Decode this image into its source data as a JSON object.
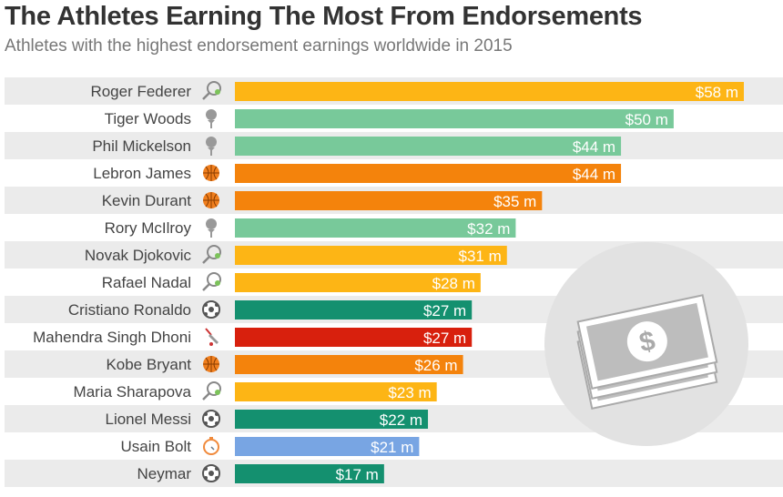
{
  "chart_data": {
    "type": "bar",
    "orientation": "horizontal",
    "title": "The Athletes Earning The Most From Endorsements",
    "subtitle": "Athletes with the highest endorsement earnings worldwide in 2015",
    "unit_prefix": "$",
    "unit_suffix": " m",
    "xlim": [
      0,
      58
    ],
    "categories": [
      "Roger Federer",
      "Tiger Woods",
      "Phil Mickelson",
      "Lebron James",
      "Kevin Durant",
      "Rory McIlroy",
      "Novak Djokovic",
      "Rafael Nadal",
      "Cristiano Ronaldo",
      "Mahendra Singh Dhoni",
      "Kobe Bryant",
      "Maria Sharapova",
      "Lionel Messi",
      "Usain Bolt",
      "Neymar"
    ],
    "values": [
      58,
      50,
      44,
      44,
      35,
      32,
      31,
      28,
      27,
      27,
      26,
      23,
      22,
      21,
      17
    ],
    "labels": [
      "$58 m",
      "$50 m",
      "$44 m",
      "$44 m",
      "$35 m",
      "$32 m",
      "$31 m",
      "$28 m",
      "$27 m",
      "$27 m",
      "$26 m",
      "$23 m",
      "$22 m",
      "$21 m",
      "$17 m"
    ],
    "sports": [
      "tennis",
      "golf",
      "golf",
      "basketball",
      "basketball",
      "golf",
      "tennis",
      "tennis",
      "soccer",
      "cricket",
      "basketball",
      "tennis",
      "soccer",
      "athletics",
      "soccer"
    ],
    "sport_colors": {
      "tennis": "#fdb515",
      "golf": "#78c99a",
      "basketball": "#f4830c",
      "soccer": "#14906f",
      "cricket": "#d8200d",
      "athletics": "#78a5e3"
    }
  }
}
